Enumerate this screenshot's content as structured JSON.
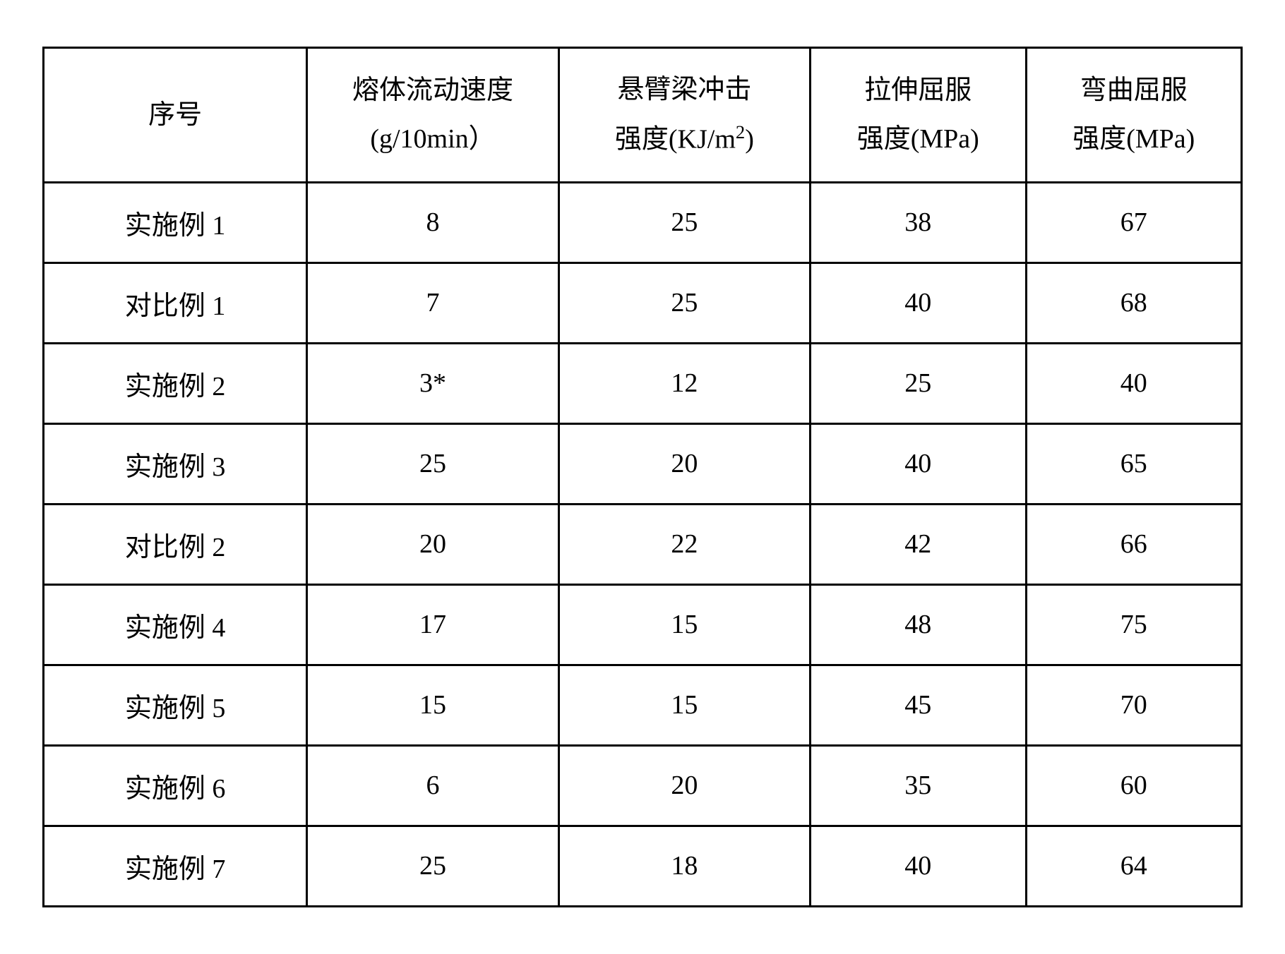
{
  "table": {
    "columns": [
      {
        "line1": "序号",
        "line2": ""
      },
      {
        "line1": "熔体流动速度",
        "line2": "(g/10min）"
      },
      {
        "line1": "悬臂梁冲击",
        "line2_html": "强度(KJ/m<sup>2</sup>)"
      },
      {
        "line1": "拉伸屈服",
        "line2": "强度(MPa)"
      },
      {
        "line1": "弯曲屈服",
        "line2": "强度(MPa)"
      }
    ],
    "rows": [
      {
        "label": "实施例 1",
        "c1": "8",
        "c2": "25",
        "c3": "38",
        "c4": "67"
      },
      {
        "label": "对比例 1",
        "c1": "7",
        "c2": "25",
        "c3": "40",
        "c4": "68"
      },
      {
        "label": "实施例 2",
        "c1": "3*",
        "c2": "12",
        "c3": "25",
        "c4": "40"
      },
      {
        "label": "实施例 3",
        "c1": "25",
        "c2": "20",
        "c3": "40",
        "c4": "65"
      },
      {
        "label": "对比例 2",
        "c1": "20",
        "c2": "22",
        "c3": "42",
        "c4": "66"
      },
      {
        "label": "实施例 4",
        "c1": "17",
        "c2": "15",
        "c3": "48",
        "c4": "75"
      },
      {
        "label": "实施例 5",
        "c1": "15",
        "c2": "15",
        "c3": "45",
        "c4": "70"
      },
      {
        "label": "实施例 6",
        "c1": "6",
        "c2": "20",
        "c3": "35",
        "c4": "60"
      },
      {
        "label": "实施例 7",
        "c1": "25",
        "c2": "18",
        "c3": "40",
        "c4": "64"
      }
    ],
    "styling": {
      "border_color": "#000000",
      "border_width": 3,
      "background_color": "#ffffff",
      "text_color": "#000000",
      "font_size": 38,
      "font_family": "SimSun",
      "cell_padding_v": 28,
      "cell_padding_h": 16,
      "col_widths_pct": [
        22,
        21,
        21,
        18,
        18
      ],
      "text_align": "center"
    }
  }
}
